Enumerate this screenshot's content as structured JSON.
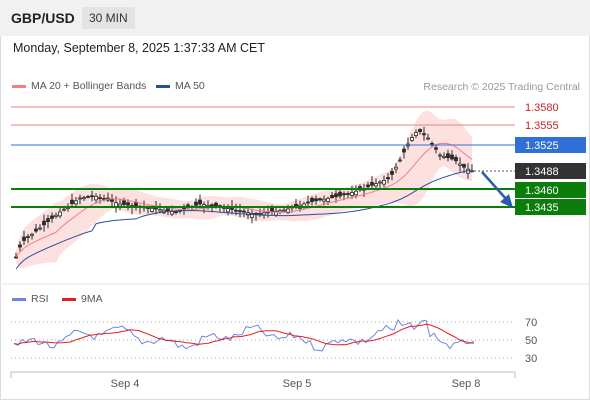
{
  "header": {
    "symbol": "GBP/USD",
    "timeframe": "30 MIN"
  },
  "datetime": "Monday, September 8, 2025 1:37:33 AM CET",
  "legend": {
    "ma20_label": "MA 20 + Bollinger Bands",
    "ma50_label": "MA 50",
    "credit": "Research © 2025 Trading Central"
  },
  "levels": [
    {
      "label": "1.3580",
      "style": "resistance-weak",
      "color": "#f08080"
    },
    {
      "label": "1.3555",
      "style": "resistance-weak",
      "color": "#f08080"
    },
    {
      "label": "1.3525",
      "style": "pivot",
      "color": "#2f6fd6"
    },
    {
      "label": "1.3488",
      "style": "last-price",
      "color": "#333333"
    },
    {
      "label": "1.3460",
      "style": "support",
      "color": "#0a7d0a"
    },
    {
      "label": "1.3435",
      "style": "support",
      "color": "#0a7d0a"
    }
  ],
  "rsi": {
    "legend_rsi": "RSI",
    "legend_9ma": "9MA",
    "ticks": [
      "70",
      "50",
      "30"
    ]
  },
  "xaxis": {
    "labels": [
      "Sep 4",
      "Sep 5",
      "Sep 8"
    ]
  },
  "colors": {
    "ma20": "#f08080",
    "ma50": "#2a4f9a",
    "bollinger_fill": "#fde0e0",
    "candle": "#2b2b2b",
    "rsi": "#6f86e0",
    "rsi_ma": "#e02020",
    "arrow": "#2a5ca8"
  }
}
